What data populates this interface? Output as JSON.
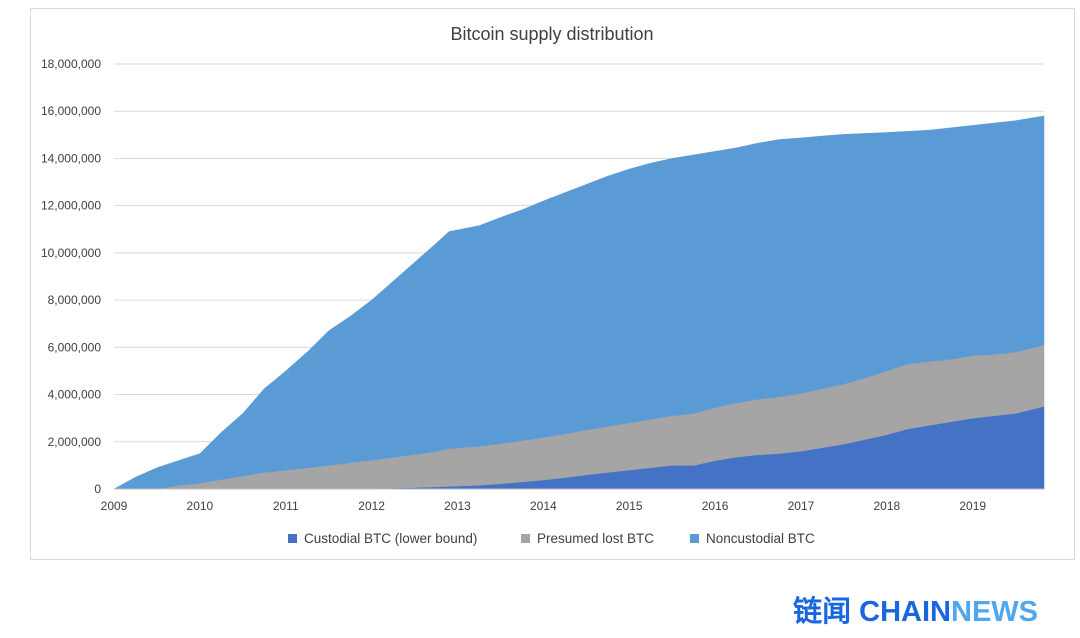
{
  "chart_data": {
    "type": "area",
    "stacked": true,
    "title": "Bitcoin supply distribution",
    "xlabel": "",
    "ylabel": "",
    "x_ticks": [
      "2009",
      "2010",
      "2011",
      "2012",
      "2013",
      "2014",
      "2015",
      "2016",
      "2017",
      "2018",
      "2019"
    ],
    "y_ticks": [
      "0",
      "2,000,000",
      "4,000,000",
      "6,000,000",
      "8,000,000",
      "10,000,000",
      "12,000,000",
      "14,000,000",
      "16,000,000",
      "18,000,000"
    ],
    "xlim": [
      2009.0,
      2019.83
    ],
    "ylim": [
      0,
      18000000
    ],
    "grid": "horizontal",
    "legend_position": "bottom",
    "x": [
      2009.0,
      2009.25,
      2009.5,
      2009.75,
      2010.0,
      2010.25,
      2010.5,
      2010.75,
      2011.0,
      2011.25,
      2011.5,
      2011.75,
      2012.0,
      2012.25,
      2012.5,
      2012.75,
      2012.9,
      2013.25,
      2013.5,
      2013.75,
      2014.0,
      2014.25,
      2014.5,
      2014.75,
      2015.0,
      2015.25,
      2015.5,
      2015.75,
      2016.0,
      2016.25,
      2016.5,
      2016.75,
      2017.0,
      2017.25,
      2017.5,
      2017.75,
      2018.0,
      2018.25,
      2018.5,
      2018.75,
      2019.0,
      2019.25,
      2019.5,
      2019.83
    ],
    "series": [
      {
        "name": "Custodial BTC (lower bound)",
        "color": "#4472c4",
        "values": [
          0,
          0,
          0,
          0,
          0,
          0,
          0,
          0,
          0,
          0,
          0,
          10000,
          20000,
          40000,
          60000,
          90000,
          110000,
          160000,
          220000,
          300000,
          380000,
          480000,
          600000,
          700000,
          800000,
          900000,
          1000000,
          1000000,
          1200000,
          1350000,
          1450000,
          1500000,
          1600000,
          1750000,
          1900000,
          2100000,
          2300000,
          2550000,
          2700000,
          2850000,
          3000000,
          3100000,
          3200000,
          3500000
        ]
      },
      {
        "name": "Presumed lost BTC",
        "color": "#a5a5a5",
        "values": [
          0,
          0,
          0,
          150000,
          250000,
          400000,
          550000,
          700000,
          800000,
          900000,
          1000000,
          1100000,
          1200000,
          1300000,
          1400000,
          1500000,
          1600000,
          1650000,
          1700000,
          1750000,
          1800000,
          1850000,
          1900000,
          1950000,
          2000000,
          2050000,
          2100000,
          2200000,
          2250000,
          2300000,
          2350000,
          2400000,
          2450000,
          2500000,
          2550000,
          2600000,
          2700000,
          2750000,
          2700000,
          2650000,
          2650000,
          2600000,
          2600000,
          2600000
        ]
      },
      {
        "name": "Noncustodial BTC",
        "color": "#5b9bd5",
        "values": [
          0,
          500000,
          900000,
          1050000,
          1250000,
          2000000,
          2650000,
          3550000,
          4200000,
          4900000,
          5700000,
          6200000,
          6780000,
          7460000,
          8140000,
          8810000,
          9190000,
          9340000,
          9580000,
          9770000,
          10020000,
          10220000,
          10400000,
          10600000,
          10750000,
          10850000,
          10900000,
          10950000,
          10850000,
          10800000,
          10850000,
          10900000,
          10820000,
          10700000,
          10570000,
          10360000,
          10100000,
          9850000,
          9800000,
          9800000,
          9750000,
          9800000,
          9800000,
          9700000
        ]
      }
    ]
  },
  "watermark": {
    "cn": "链闻",
    "chain": "CHAIN",
    "news": "NEWS"
  }
}
